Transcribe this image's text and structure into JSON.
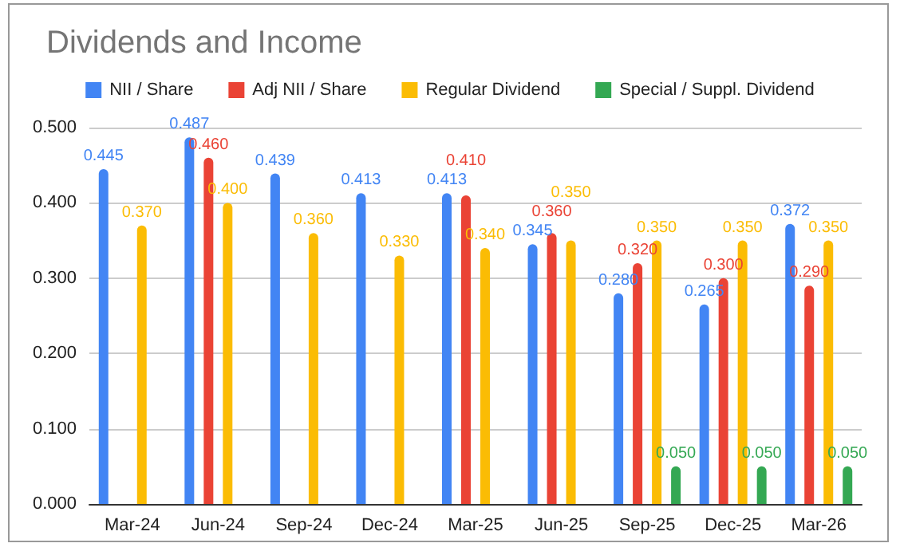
{
  "chart_data": {
    "type": "bar",
    "title": "Dividends and Income",
    "categories": [
      "Mar-24",
      "Jun-24",
      "Sep-24",
      "Dec-24",
      "Mar-25",
      "Jun-25",
      "Sep-25",
      "Dec-25",
      "Mar-26"
    ],
    "series": [
      {
        "name": "NII / Share",
        "color": "#4285f4",
        "values": [
          0.445,
          0.487,
          0.439,
          0.413,
          0.413,
          0.345,
          0.28,
          0.265,
          0.372
        ],
        "value_labels": [
          "0.445",
          "0.487",
          "0.439",
          "0.413",
          "0.413",
          "0.345",
          "0.280",
          "0.265",
          "0.372"
        ]
      },
      {
        "name": "Adj NII / Share",
        "color": "#ea4335",
        "values": [
          null,
          0.46,
          null,
          null,
          0.41,
          0.36,
          0.32,
          0.3,
          0.29
        ],
        "value_labels": [
          null,
          "0.460",
          null,
          null,
          "0.410",
          "0.360",
          "0.320",
          "0.300",
          "0.290"
        ]
      },
      {
        "name": "Regular Dividend",
        "color": "#fbbc04",
        "values": [
          0.37,
          0.4,
          0.36,
          0.33,
          0.34,
          0.35,
          0.35,
          0.35,
          0.35
        ],
        "value_labels": [
          "0.370",
          "0.400",
          "0.360",
          "0.330",
          "0.340",
          "0.350",
          "0.350",
          "0.350",
          "0.350"
        ]
      },
      {
        "name": "Special / Suppl. Dividend",
        "color": "#34a853",
        "values": [
          null,
          null,
          null,
          null,
          null,
          null,
          0.05,
          0.05,
          0.05
        ],
        "value_labels": [
          null,
          null,
          null,
          null,
          null,
          null,
          "0.050",
          "0.050",
          "0.050"
        ]
      }
    ],
    "ylim": [
      0,
      0.5
    ],
    "yticks": [
      {
        "value": 0,
        "label": "0.000"
      },
      {
        "value": 0.1,
        "label": "0.100"
      },
      {
        "value": 0.2,
        "label": "0.200"
      },
      {
        "value": 0.3,
        "label": "0.300"
      },
      {
        "value": 0.4,
        "label": "0.400"
      },
      {
        "value": 0.5,
        "label": "0.500"
      }
    ],
    "grid": "y",
    "legend": "top"
  }
}
